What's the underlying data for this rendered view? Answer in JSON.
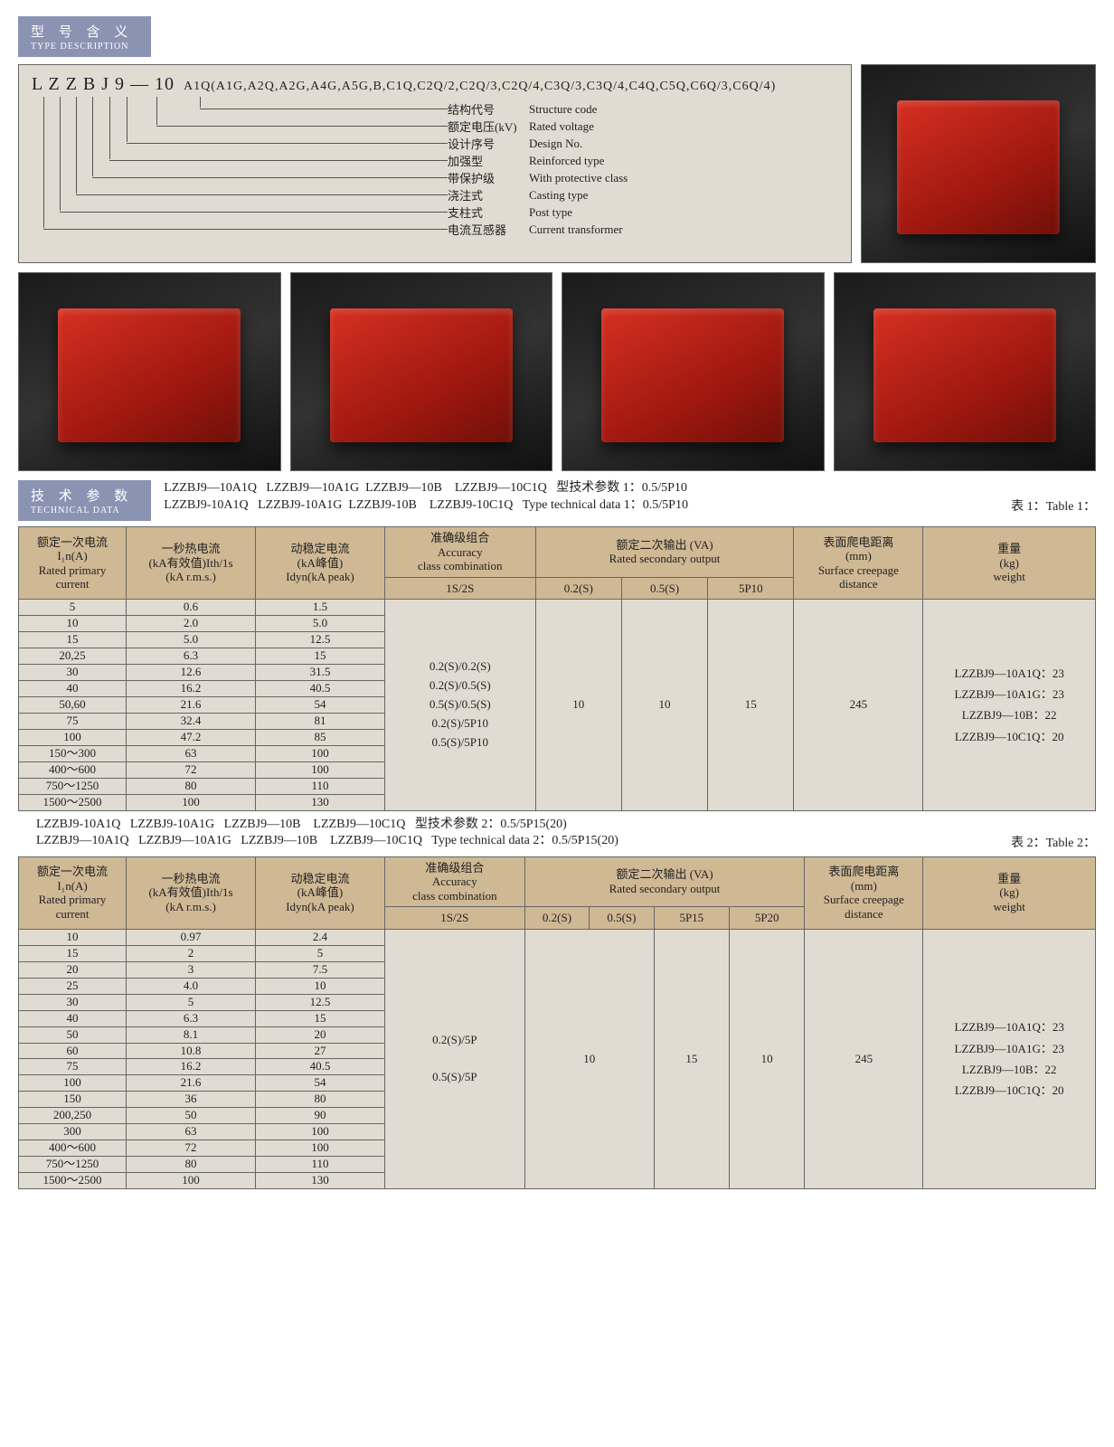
{
  "section1": {
    "cn": "型 号 含 义",
    "en": "TYPE DESCRIPTION"
  },
  "type_code_main": "L  Z  Z  B  J  9  —  10",
  "type_code_tail": "A1Q(A1G,A2Q,A2G,A4G,A5G,B,C1Q,C2Q/2,C2Q/3,C2Q/4,C3Q/3,C3Q/4,C4Q,C5Q,C6Q/3,C6Q/4)",
  "desc": [
    {
      "cn": "结构代号",
      "en": "Structure code"
    },
    {
      "cn": "额定电压(kV)",
      "en": "Rated voltage"
    },
    {
      "cn": "设计序号",
      "en": "Design No."
    },
    {
      "cn": "加强型",
      "en": "Reinforced type"
    },
    {
      "cn": "带保护级",
      "en": "With protective class"
    },
    {
      "cn": "浇注式",
      "en": "Casting type"
    },
    {
      "cn": "支柱式",
      "en": "Post type"
    },
    {
      "cn": "电流互感器",
      "en": "Current transformer"
    }
  ],
  "section2": {
    "cn": "技 术 参 数",
    "en": "TECHNICAL DATA"
  },
  "models_line1": "LZZBJ9—10A1Q   LZZBJ9—10A1G  LZZBJ9—10B    LZZBJ9—10C1Q   型技术参数 1：0.5/5P10",
  "models_line2": "LZZBJ9-10A1Q   LZZBJ9-10A1G  LZZBJ9-10B    LZZBJ9-10C1Q   Type technical data 1：0.5/5P10",
  "table1_label": "表 1：Table 1：",
  "headers1": {
    "c1": "额定一次电流\nI₁n(A)\nRated primary\ncurrent",
    "c2": "一秒热电流\n(kA有效值)Ith/1s\n(kA r.m.s.)",
    "c3": "动稳定电流\n(kA峰值)\nIdyn(kA peak)",
    "c4t": "准确级组合\nAccuracy\nclass combination",
    "c4b": "1S/2S",
    "c5t": "额定二次输出 (VA)\nRated secondary output",
    "c5a": "0.2(S)",
    "c5b": "0.5(S)",
    "c5c": "5P10",
    "c6": "表面爬电距离\n(mm)\nSurface creepage\ndistance",
    "c7": "重量\n(kg)\nweight"
  },
  "t1_acc": "0.2(S)/0.2(S)\n0.2(S)/0.5(S)\n0.5(S)/0.5(S)\n0.2(S)/5P10\n0.5(S)/5P10",
  "t1_v02": "10",
  "t1_v05": "10",
  "t1_v5p": "15",
  "t1_creep": "245",
  "t1_weight": "LZZBJ9—10A1Q：23\nLZZBJ9—10A1G：23\nLZZBJ9—10B：22\nLZZBJ9—10C1Q：20",
  "t1_rows": [
    [
      "5",
      "0.6",
      "1.5"
    ],
    [
      "10",
      "2.0",
      "5.0"
    ],
    [
      "15",
      "5.0",
      "12.5"
    ],
    [
      "20,25",
      "6.3",
      "15"
    ],
    [
      "30",
      "12.6",
      "31.5"
    ],
    [
      "40",
      "16.2",
      "40.5"
    ],
    [
      "50,60",
      "21.6",
      "54"
    ],
    [
      "75",
      "32.4",
      "81"
    ],
    [
      "100",
      "47.2",
      "85"
    ],
    [
      "150～300",
      "63",
      "100"
    ],
    [
      "400～600",
      "72",
      "100"
    ],
    [
      "750～1250",
      "80",
      "110"
    ],
    [
      "1500～2500",
      "100",
      "130"
    ]
  ],
  "models2_line1": "LZZBJ9-10A1Q   LZZBJ9-10A1G   LZZBJ9—10B    LZZBJ9—10C1Q   型技术参数 2：0.5/5P15(20)",
  "models2_line2": "LZZBJ9—10A1Q   LZZBJ9—10A1G   LZZBJ9—10B    LZZBJ9—10C1Q   Type technical data 2：0.5/5P15(20)",
  "table2_label": "表 2：Table 2：",
  "headers2": {
    "c5t": "额定二次输出 (VA)\nRated secondary output",
    "c5a": "0.2(S)",
    "c5b": "0.5(S)",
    "c5c": "5P15",
    "c5d": "5P20"
  },
  "t2_acc": "0.2(S)/5P\n\n0.5(S)/5P",
  "t2_v": "10",
  "t2_5p15": "15",
  "t2_5p20": "10",
  "t2_creep": "245",
  "t2_weight": "LZZBJ9—10A1Q：23\nLZZBJ9—10A1G：23\nLZZBJ9—10B：22\nLZZBJ9—10C1Q：20",
  "t2_rows": [
    [
      "10",
      "0.97",
      "2.4"
    ],
    [
      "15",
      "2",
      "5"
    ],
    [
      "20",
      "3",
      "7.5"
    ],
    [
      "25",
      "4.0",
      "10"
    ],
    [
      "30",
      "5",
      "12.5"
    ],
    [
      "40",
      "6.3",
      "15"
    ],
    [
      "50",
      "8.1",
      "20"
    ],
    [
      "60",
      "10.8",
      "27"
    ],
    [
      "75",
      "16.2",
      "40.5"
    ],
    [
      "100",
      "21.6",
      "54"
    ],
    [
      "150",
      "36",
      "80"
    ],
    [
      "200,250",
      "50",
      "90"
    ],
    [
      "300",
      "63",
      "100"
    ],
    [
      "400～600",
      "72",
      "100"
    ],
    [
      "750～1250",
      "80",
      "110"
    ],
    [
      "1500～2500",
      "100",
      "130"
    ]
  ],
  "colors": {
    "tag": "#8b93b3",
    "panel": "#e1dcd1",
    "thead": "#cfb894",
    "border": "#666"
  }
}
